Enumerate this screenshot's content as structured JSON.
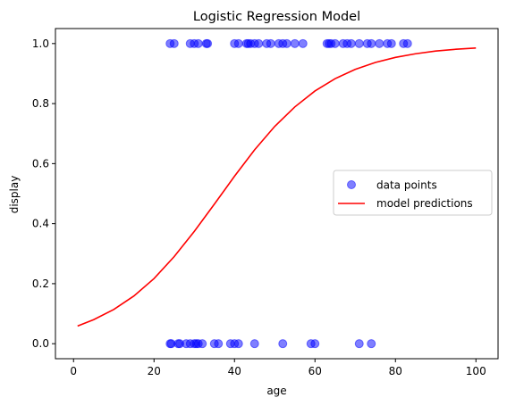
{
  "chart_data": {
    "type": "scatter",
    "title": "Logistic Regression Model",
    "xlabel": "age",
    "ylabel": "display",
    "xlim": [
      -4.5,
      105.5
    ],
    "ylim": [
      -0.05,
      1.05
    ],
    "xticks": [
      0,
      20,
      40,
      60,
      80,
      100
    ],
    "yticks": [
      0.0,
      0.2,
      0.4,
      0.6,
      0.8,
      1.0
    ],
    "xtick_labels": [
      "0",
      "20",
      "40",
      "60",
      "80",
      "100"
    ],
    "ytick_labels": [
      "0.0",
      "0.2",
      "0.4",
      "0.6",
      "0.8",
      "1.0"
    ],
    "grid": false,
    "legend_position": "center-right",
    "series": [
      {
        "name": "data points",
        "kind": "scatter",
        "color": "#0000ff",
        "alpha": 0.5,
        "points": [
          {
            "x": 24,
            "y": 1
          },
          {
            "x": 25,
            "y": 1
          },
          {
            "x": 29,
            "y": 1
          },
          {
            "x": 30,
            "y": 1
          },
          {
            "x": 31,
            "y": 1
          },
          {
            "x": 33,
            "y": 1
          },
          {
            "x": 33.3,
            "y": 1
          },
          {
            "x": 40,
            "y": 1
          },
          {
            "x": 41,
            "y": 1
          },
          {
            "x": 43,
            "y": 1
          },
          {
            "x": 43.4,
            "y": 1
          },
          {
            "x": 44,
            "y": 1
          },
          {
            "x": 45,
            "y": 1
          },
          {
            "x": 46,
            "y": 1
          },
          {
            "x": 48,
            "y": 1
          },
          {
            "x": 49,
            "y": 1
          },
          {
            "x": 51,
            "y": 1
          },
          {
            "x": 52,
            "y": 1
          },
          {
            "x": 53,
            "y": 1
          },
          {
            "x": 55,
            "y": 1
          },
          {
            "x": 57,
            "y": 1
          },
          {
            "x": 63,
            "y": 1
          },
          {
            "x": 63.5,
            "y": 1
          },
          {
            "x": 64,
            "y": 1
          },
          {
            "x": 65,
            "y": 1
          },
          {
            "x": 67,
            "y": 1
          },
          {
            "x": 68,
            "y": 1
          },
          {
            "x": 69,
            "y": 1
          },
          {
            "x": 71,
            "y": 1
          },
          {
            "x": 73,
            "y": 1
          },
          {
            "x": 74,
            "y": 1
          },
          {
            "x": 76,
            "y": 1
          },
          {
            "x": 78,
            "y": 1
          },
          {
            "x": 79,
            "y": 1
          },
          {
            "x": 82,
            "y": 1
          },
          {
            "x": 83,
            "y": 1
          },
          {
            "x": 24,
            "y": 0
          },
          {
            "x": 24.3,
            "y": 0
          },
          {
            "x": 26,
            "y": 0
          },
          {
            "x": 26.4,
            "y": 0
          },
          {
            "x": 28,
            "y": 0
          },
          {
            "x": 29,
            "y": 0
          },
          {
            "x": 30,
            "y": 0
          },
          {
            "x": 30.5,
            "y": 0
          },
          {
            "x": 31,
            "y": 0
          },
          {
            "x": 32,
            "y": 0
          },
          {
            "x": 35,
            "y": 0
          },
          {
            "x": 36,
            "y": 0
          },
          {
            "x": 39,
            "y": 0
          },
          {
            "x": 40,
            "y": 0
          },
          {
            "x": 41,
            "y": 0
          },
          {
            "x": 45,
            "y": 0
          },
          {
            "x": 52,
            "y": 0
          },
          {
            "x": 59,
            "y": 0
          },
          {
            "x": 60,
            "y": 0
          },
          {
            "x": 71,
            "y": 0
          },
          {
            "x": 74,
            "y": 0
          }
        ]
      },
      {
        "name": "model predictions",
        "kind": "line",
        "color": "#ff0000",
        "x": [
          1,
          5,
          10,
          15,
          20,
          25,
          30,
          35,
          40,
          45,
          50,
          55,
          60,
          65,
          70,
          75,
          80,
          85,
          90,
          95,
          100
        ],
        "y": [
          0.059,
          0.08,
          0.114,
          0.159,
          0.217,
          0.29,
          0.374,
          0.465,
          0.558,
          0.646,
          0.724,
          0.789,
          0.842,
          0.883,
          0.914,
          0.937,
          0.954,
          0.966,
          0.975,
          0.981,
          0.985
        ]
      }
    ]
  }
}
